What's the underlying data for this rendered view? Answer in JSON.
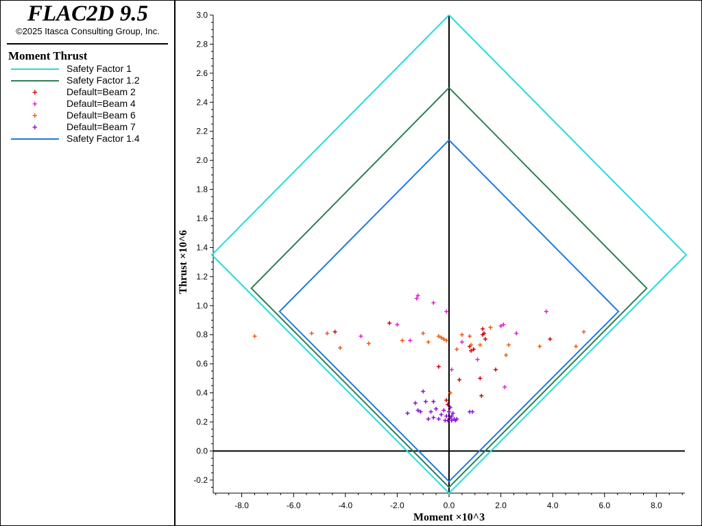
{
  "app": {
    "title": "FLAC2D 9.5",
    "copyright": "©2025 Itasca Consulting Group, Inc."
  },
  "legend": {
    "title": "Moment Thrust",
    "items": [
      {
        "label": "Safety Factor 1",
        "kind": "line",
        "color": "#1fdcdc"
      },
      {
        "label": "Safety Factor 1.2",
        "kind": "line",
        "color": "#2e7d4f"
      },
      {
        "label": "Default=Beam 2",
        "kind": "marker",
        "color": "#d40000"
      },
      {
        "label": "Default=Beam 4",
        "kind": "marker",
        "color": "#e020d0"
      },
      {
        "label": "Default=Beam 6",
        "kind": "marker",
        "color": "#f05a10"
      },
      {
        "label": "Default=Beam 7",
        "kind": "marker",
        "color": "#8a10d8"
      },
      {
        "label": "Safety Factor 1.4",
        "kind": "line",
        "color": "#1e78e0"
      }
    ]
  },
  "chart_data": {
    "type": "scatter",
    "xlabel": "Moment ×10^3",
    "ylabel": "Thrust ×10^6",
    "xlim": [
      -9.1,
      9.1
    ],
    "ylim": [
      -0.29,
      3.0
    ],
    "x_ticks": [
      "-8.0",
      "-6.0",
      "-4.0",
      "-2.0",
      "0.0",
      "2.0",
      "4.0",
      "6.0",
      "8.0"
    ],
    "y_ticks": [
      "-0.2",
      "0.0",
      "0.2",
      "0.4",
      "0.6",
      "0.8",
      "1.0",
      "1.2",
      "1.4",
      "1.6",
      "1.8",
      "2.0",
      "2.2",
      "2.4",
      "2.6",
      "2.8",
      "3.0"
    ],
    "envelopes": [
      {
        "name": "Safety Factor 1",
        "color": "#1fdcdc",
        "points": [
          [
            0,
            3.0
          ],
          [
            9.15,
            1.35
          ],
          [
            0,
            -0.29
          ],
          [
            -9.15,
            1.35
          ],
          [
            0,
            3.0
          ]
        ]
      },
      {
        "name": "Safety Factor 1.2",
        "color": "#2e7d4f",
        "points": [
          [
            0,
            2.5
          ],
          [
            7.63,
            1.12
          ],
          [
            0,
            -0.25
          ],
          [
            -7.63,
            1.12
          ],
          [
            0,
            2.5
          ]
        ]
      },
      {
        "name": "Safety Factor 1.4",
        "color": "#1e78e0",
        "points": [
          [
            0,
            2.14
          ],
          [
            6.54,
            0.96
          ],
          [
            0,
            -0.21
          ],
          [
            -6.54,
            0.96
          ],
          [
            0,
            2.14
          ]
        ]
      }
    ],
    "series": [
      {
        "name": "Default=Beam 2",
        "color": "#d40000",
        "points": [
          [
            -4.4,
            0.82
          ],
          [
            -2.3,
            0.88
          ],
          [
            -0.4,
            0.58
          ],
          [
            -0.1,
            0.35
          ],
          [
            -0.05,
            0.32
          ],
          [
            0.4,
            0.49
          ],
          [
            0.8,
            0.72
          ],
          [
            0.85,
            0.69
          ],
          [
            1.3,
            0.84
          ],
          [
            1.35,
            0.81
          ],
          [
            1.4,
            0.77
          ],
          [
            1.2,
            0.5
          ],
          [
            1.25,
            0.38
          ],
          [
            1.8,
            0.56
          ],
          [
            3.9,
            0.77
          ],
          [
            0.95,
            0.7
          ],
          [
            1.3,
            0.8
          ]
        ]
      },
      {
        "name": "Default=Beam 4",
        "color": "#e020d0",
        "points": [
          [
            -1.2,
            1.07
          ],
          [
            -1.25,
            1.05
          ],
          [
            -0.6,
            1.02
          ],
          [
            -0.1,
            0.96
          ],
          [
            3.75,
            0.96
          ],
          [
            -2.0,
            0.87
          ],
          [
            2.1,
            0.87
          ],
          [
            2.0,
            0.86
          ],
          [
            2.6,
            0.81
          ],
          [
            -3.4,
            0.79
          ],
          [
            -1.5,
            0.76
          ],
          [
            0.5,
            0.75
          ],
          [
            1.1,
            0.63
          ],
          [
            0.1,
            0.56
          ],
          [
            2.15,
            0.44
          ]
        ]
      },
      {
        "name": "Default=Beam 6",
        "color": "#f05a10",
        "points": [
          [
            -7.5,
            0.79
          ],
          [
            -5.3,
            0.81
          ],
          [
            -4.7,
            0.81
          ],
          [
            -4.2,
            0.71
          ],
          [
            -3.1,
            0.74
          ],
          [
            -1.8,
            0.76
          ],
          [
            -1.0,
            0.81
          ],
          [
            -0.8,
            0.75
          ],
          [
            -0.4,
            0.79
          ],
          [
            -0.3,
            0.78
          ],
          [
            -0.2,
            0.77
          ],
          [
            -0.1,
            0.76
          ],
          [
            0.3,
            0.7
          ],
          [
            0.5,
            0.8
          ],
          [
            0.8,
            0.79
          ],
          [
            0.85,
            0.73
          ],
          [
            1.2,
            0.73
          ],
          [
            1.6,
            0.85
          ],
          [
            2.3,
            0.73
          ],
          [
            2.2,
            0.66
          ],
          [
            3.5,
            0.72
          ],
          [
            4.9,
            0.72
          ],
          [
            5.2,
            0.82
          ],
          [
            0.05,
            0.4
          ]
        ]
      },
      {
        "name": "Default=Beam 7",
        "color": "#8a10d8",
        "points": [
          [
            -1.3,
            0.33
          ],
          [
            -1.0,
            0.41
          ],
          [
            -0.9,
            0.34
          ],
          [
            -1.2,
            0.28
          ],
          [
            -1.6,
            0.26
          ],
          [
            -1.1,
            0.27
          ],
          [
            -0.7,
            0.27
          ],
          [
            -0.5,
            0.29
          ],
          [
            -0.4,
            0.22
          ],
          [
            -0.3,
            0.25
          ],
          [
            -0.2,
            0.28
          ],
          [
            -0.1,
            0.24
          ],
          [
            -0.05,
            0.21
          ],
          [
            0.0,
            0.27
          ],
          [
            0.05,
            0.23
          ],
          [
            0.1,
            0.21
          ],
          [
            0.15,
            0.26
          ],
          [
            0.2,
            0.22
          ],
          [
            0.25,
            0.21
          ],
          [
            0.3,
            0.22
          ],
          [
            -0.6,
            0.34
          ],
          [
            0.8,
            0.27
          ],
          [
            0.9,
            0.27
          ],
          [
            -0.6,
            0.23
          ],
          [
            -0.8,
            0.22
          ],
          [
            0.05,
            0.3
          ],
          [
            -0.15,
            0.21
          ],
          [
            0.1,
            0.24
          ]
        ]
      }
    ]
  }
}
